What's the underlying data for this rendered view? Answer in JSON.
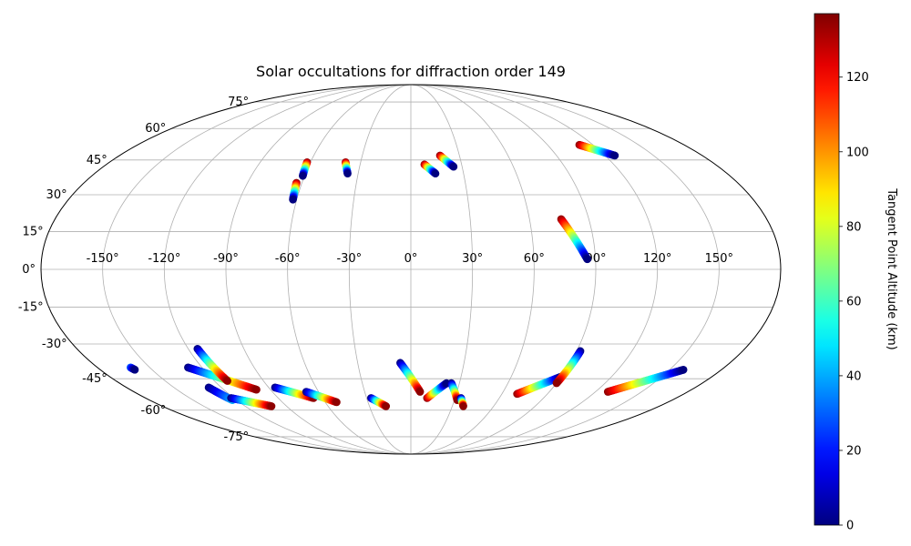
{
  "chart_data": {
    "type": "scatter",
    "projection": "mollweide",
    "title": "Solar occultations for diffraction order 149",
    "xlabel": "",
    "ylabel": "",
    "grid": true,
    "x_range": [
      -180,
      180
    ],
    "y_range": [
      -90,
      90
    ],
    "x_tick_labels": [
      {
        "value": -150,
        "label": "-150°"
      },
      {
        "value": -120,
        "label": "-120°"
      },
      {
        "value": -90,
        "label": "-90°"
      },
      {
        "value": -60,
        "label": "-60°"
      },
      {
        "value": -30,
        "label": "-30°"
      },
      {
        "value": 0,
        "label": "0°"
      },
      {
        "value": 30,
        "label": "30°"
      },
      {
        "value": 60,
        "label": "60°"
      },
      {
        "value": 90,
        "label": "90°"
      },
      {
        "value": 120,
        "label": "120°"
      },
      {
        "value": 150,
        "label": "150°"
      }
    ],
    "y_tick_labels": [
      {
        "value": 75,
        "label": "75°"
      },
      {
        "value": 60,
        "label": "60°"
      },
      {
        "value": 45,
        "label": "45°"
      },
      {
        "value": 30,
        "label": "30°"
      },
      {
        "value": 15,
        "label": "15°"
      },
      {
        "value": 0,
        "label": "0°"
      },
      {
        "value": -15,
        "label": "-15°"
      },
      {
        "value": -30,
        "label": "-30°"
      },
      {
        "value": -45,
        "label": "-45°"
      },
      {
        "value": -60,
        "label": "-60°"
      },
      {
        "value": -75,
        "label": "-75°"
      }
    ],
    "colorbar": {
      "label": "Tangent Point Altitude (km)",
      "colormap": "jet",
      "range": [
        0,
        137
      ],
      "ticks": [
        {
          "value": 0,
          "label": "0"
        },
        {
          "value": 20,
          "label": "20"
        },
        {
          "value": 40,
          "label": "40"
        },
        {
          "value": 60,
          "label": "60"
        },
        {
          "value": 80,
          "label": "80"
        },
        {
          "value": 100,
          "label": "100"
        },
        {
          "value": 120,
          "label": "120"
        }
      ]
    },
    "tracks": [
      {
        "lon_start": -62,
        "lat_start": 44,
        "alt_start": 135,
        "lon_end": -61,
        "lat_end": 38,
        "alt_end": 0
      },
      {
        "lon_start": -63,
        "lat_start": 35,
        "alt_start": 135,
        "lon_end": -62,
        "lat_end": 28,
        "alt_end": 0
      },
      {
        "lon_start": -39,
        "lat_start": 44,
        "alt_start": 135,
        "lon_end": -36,
        "lat_end": 39,
        "alt_end": 0
      },
      {
        "lon_start": 8,
        "lat_start": 43,
        "alt_start": 135,
        "lon_end": 14,
        "lat_end": 39,
        "alt_end": 0
      },
      {
        "lon_start": 18,
        "lat_start": 47,
        "alt_start": 135,
        "lon_end": 25,
        "lat_end": 42,
        "alt_end": 0
      },
      {
        "lon_start": 111,
        "lat_start": 52,
        "alt_start": 135,
        "lon_end": 126,
        "lat_end": 47,
        "alt_end": 0
      },
      {
        "lon_start": 76,
        "lat_start": 20,
        "alt_start": 135,
        "lon_end": 86,
        "lat_end": 4,
        "alt_end": 0
      },
      {
        "lon_start": -161,
        "lat_start": -40,
        "alt_start": 30,
        "lon_end": -160,
        "lat_end": -41,
        "alt_end": 0
      },
      {
        "lon_start": -128,
        "lat_start": -40,
        "alt_start": 0,
        "lon_end": -99,
        "lat_end": -50,
        "alt_end": 135
      },
      {
        "lon_start": -115,
        "lat_start": -32,
        "alt_start": 0,
        "lon_end": -112,
        "lat_end": -46,
        "alt_end": 135
      },
      {
        "lon_start": -128,
        "lat_start": -49,
        "alt_start": 0,
        "lon_end": -123,
        "lat_end": -55,
        "alt_end": 40
      },
      {
        "lon_start": -122,
        "lat_start": -54,
        "alt_start": 0,
        "lon_end": -101,
        "lat_end": -58,
        "alt_end": 135
      },
      {
        "lon_start": -86,
        "lat_start": -49,
        "alt_start": 0,
        "lon_end": -66,
        "lat_end": -54,
        "alt_end": 135
      },
      {
        "lon_start": -68,
        "lat_start": -51,
        "alt_start": 0,
        "lon_end": -52,
        "lat_end": -56,
        "alt_end": 135
      },
      {
        "lon_start": -27,
        "lat_start": -54,
        "alt_start": 0,
        "lon_end": -18,
        "lat_end": -58,
        "alt_end": 135
      },
      {
        "lon_start": -6,
        "lat_start": -38,
        "alt_start": 0,
        "lon_end": 6,
        "lat_end": -51,
        "alt_end": 135
      },
      {
        "lon_start": 11,
        "lat_start": -54,
        "alt_start": 135,
        "lon_end": 22,
        "lat_end": -47,
        "alt_end": 0
      },
      {
        "lon_start": 25,
        "lat_start": -47,
        "alt_start": 0,
        "lon_end": 32,
        "lat_end": -55,
        "alt_end": 135
      },
      {
        "lon_start": 34,
        "lat_start": -54,
        "alt_start": 0,
        "lon_end": 38,
        "lat_end": -58,
        "alt_end": 135
      },
      {
        "lon_start": 70,
        "lat_start": -52,
        "alt_start": 135,
        "lon_end": 90,
        "lat_end": -44,
        "alt_end": 0
      },
      {
        "lon_start": 92,
        "lat_start": -33,
        "alt_start": 0,
        "lon_end": 90,
        "lat_end": -47,
        "alt_end": 135
      },
      {
        "lon_start": 128,
        "lat_start": -51,
        "alt_start": 135,
        "lon_end": 158,
        "lat_end": -41,
        "alt_end": 0
      }
    ]
  }
}
